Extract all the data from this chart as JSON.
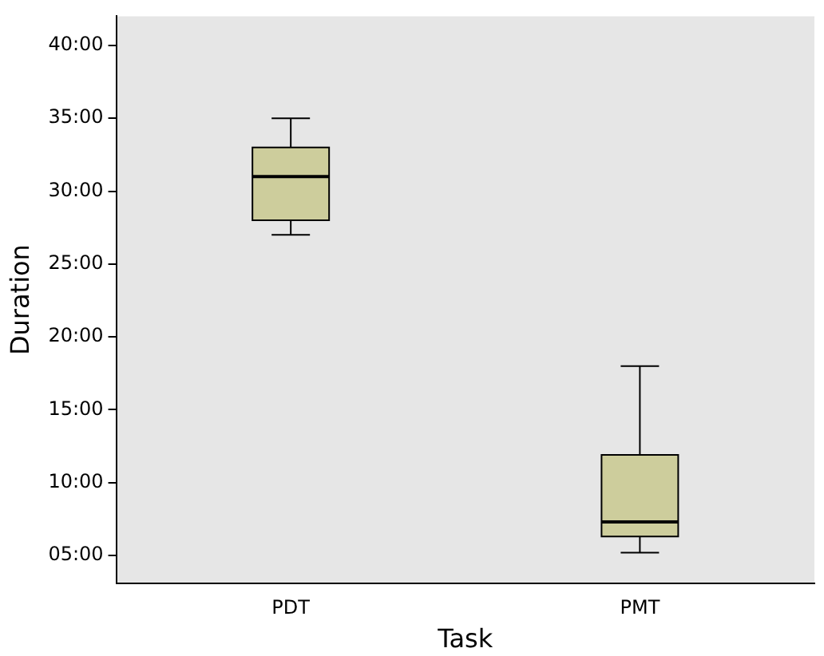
{
  "chart_data": {
    "type": "box",
    "xlabel": "Task",
    "ylabel": "Duration",
    "categories": [
      "PDT",
      "PMT"
    ],
    "series": [
      {
        "color": "#cdcd9c",
        "boxes": [
          {
            "low": 27,
            "q1": 28,
            "median": 31,
            "q3": 33,
            "high": 35
          },
          {
            "low": 5.2,
            "q1": 6.3,
            "median": 7.3,
            "q3": 11.9,
            "high": 18
          }
        ]
      }
    ],
    "ylim": [
      3.1,
      42
    ],
    "yticks": [
      {
        "value": 5,
        "label": "05:00"
      },
      {
        "value": 10,
        "label": "10:00"
      },
      {
        "value": 15,
        "label": "15:00"
      },
      {
        "value": 20,
        "label": "20:00"
      },
      {
        "value": 25,
        "label": "25:00"
      },
      {
        "value": 30,
        "label": "30:00"
      },
      {
        "value": 35,
        "label": "35:00"
      },
      {
        "value": 40,
        "label": "40:00"
      }
    ],
    "grid": false,
    "legend": false
  }
}
